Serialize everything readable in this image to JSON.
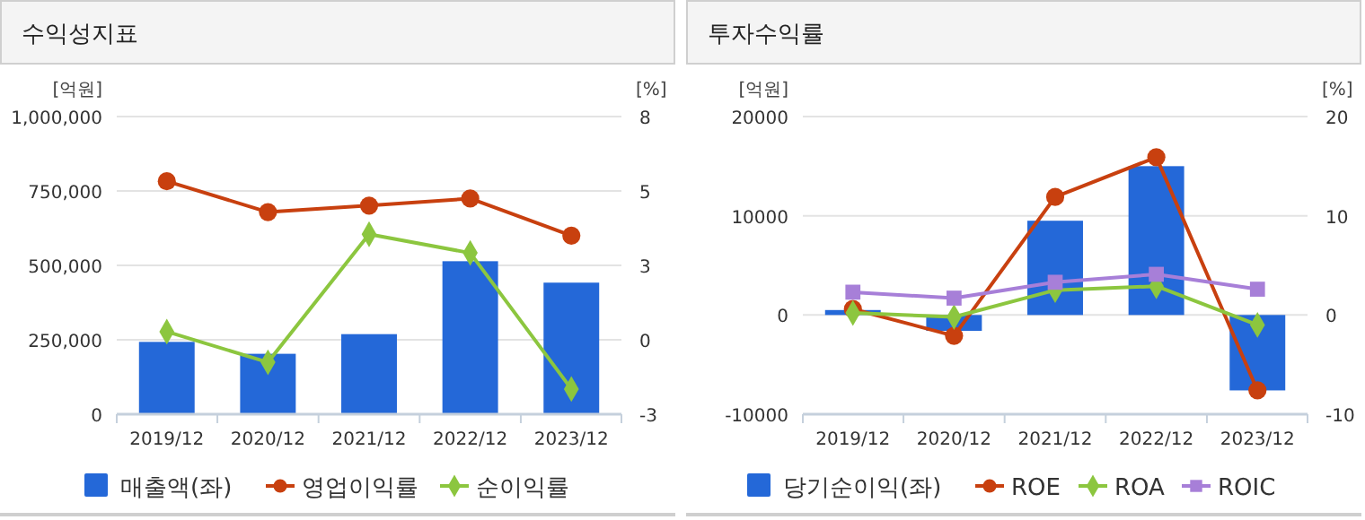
{
  "chart_data": [
    {
      "type": "bar",
      "title": "수익성지표",
      "ylabel": "[억원]",
      "y2label": "[%]",
      "categories": [
        "2019/12",
        "2020/12",
        "2021/12",
        "2022/12",
        "2023/12"
      ],
      "ylim": [
        0,
        1000000
      ],
      "yticks": [
        0,
        {
          "value": 250000,
          "label": "250,000"
        },
        {
          "value": 500000,
          "label": "500,000"
        },
        {
          "value": 750000,
          "label": "750,000"
        },
        {
          "value": 1000000,
          "label": "1,000,000"
        }
      ],
      "y2lim": [
        -3,
        8
      ],
      "y2ticks": [
        -3,
        {
          "value": -0.25,
          "label": "0"
        },
        {
          "value": 2.5,
          "label": "3"
        },
        {
          "value": 5.25,
          "label": "5"
        },
        8
      ],
      "grid": "y",
      "legend": "bottom",
      "series": [
        {
          "name": "매출액(좌)",
          "color": "#2468d8",
          "values": [
            243000,
            203000,
            269000,
            514000,
            442000
          ]
        },
        {
          "name": "영업이익률",
          "type": "line",
          "axis": "y2",
          "marker": "circle",
          "color": "#c8400f",
          "values": [
            5.61,
            4.47,
            4.71,
            4.97,
            3.6
          ]
        },
        {
          "name": "순이익률",
          "type": "line",
          "axis": "y2",
          "marker": "diamond",
          "color": "#8cc63f",
          "values": [
            0.05,
            -1.08,
            3.65,
            2.96,
            -2.07
          ]
        }
      ]
    },
    {
      "type": "bar",
      "title": "투자수익률",
      "ylabel": "[억원]",
      "y2label": "[%]",
      "categories": [
        "2019/12",
        "2020/12",
        "2021/12",
        "2022/12",
        "2023/12"
      ],
      "ylim": [
        -10000,
        20000
      ],
      "yticks": [
        -10000,
        0,
        10000,
        20000
      ],
      "y2lim": [
        -10,
        20
      ],
      "y2ticks": [
        -10,
        0,
        10,
        20
      ],
      "grid": "y",
      "legend": "bottom",
      "series": [
        {
          "name": "당기순이익(좌)",
          "color": "#2468d8",
          "values": [
            500,
            -1600,
            9500,
            15000,
            -7600
          ]
        },
        {
          "name": "ROE",
          "type": "line",
          "axis": "y2",
          "marker": "circle",
          "color": "#c8400f",
          "values": [
            0.6,
            -2.1,
            11.9,
            15.9,
            -7.6
          ]
        },
        {
          "name": "ROA",
          "type": "line",
          "axis": "y2",
          "marker": "diamond",
          "color": "#8cc63f",
          "values": [
            0.2,
            -0.2,
            2.5,
            2.9,
            -1.0
          ]
        },
        {
          "name": "ROIC",
          "type": "line",
          "axis": "y2",
          "marker": "square",
          "color": "#a77fd8",
          "values": [
            2.3,
            1.7,
            3.3,
            4.1,
            2.6
          ]
        }
      ]
    }
  ]
}
